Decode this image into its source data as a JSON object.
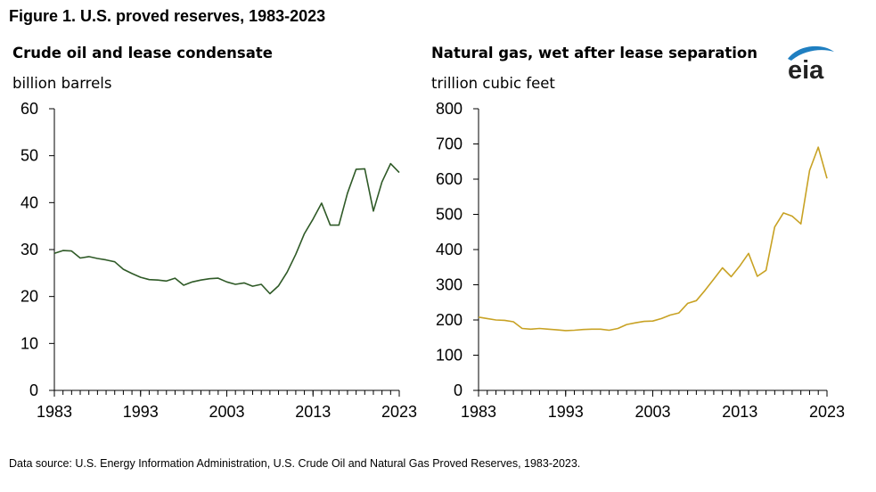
{
  "figure_title": "Figure 1. U.S. proved reserves, 1983-2023",
  "source": "Data source: U.S. Energy Information Administration, U.S. Crude Oil and Natural Gas Proved Reserves, 1983-2023.",
  "logo_text": "eia",
  "colors": {
    "oil": "#2f5a27",
    "gas": "#c8a224",
    "axis": "#000000",
    "logo_blue": "#1f7fc1"
  },
  "chart_data": [
    {
      "type": "line",
      "title": "Crude oil and lease condensate",
      "ylabel": "billion barrels",
      "xlabel": "",
      "ylim": [
        0,
        60
      ],
      "yticks": [
        0,
        10,
        20,
        30,
        40,
        50,
        60
      ],
      "xlim": [
        1983,
        2023
      ],
      "xticks": [
        1983,
        1993,
        2003,
        2013,
        2023
      ],
      "grid": false,
      "series": [
        {
          "name": "Crude oil and lease condensate",
          "x": [
            1983,
            1984,
            1985,
            1986,
            1987,
            1988,
            1989,
            1990,
            1991,
            1992,
            1993,
            1994,
            1995,
            1996,
            1997,
            1998,
            1999,
            2000,
            2001,
            2002,
            2003,
            2004,
            2005,
            2006,
            2007,
            2008,
            2009,
            2010,
            2011,
            2012,
            2013,
            2014,
            2015,
            2016,
            2017,
            2018,
            2019,
            2020,
            2021,
            2022,
            2023
          ],
          "values": [
            29.2,
            29.8,
            29.7,
            28.2,
            28.5,
            28.1,
            27.8,
            27.4,
            25.8,
            24.9,
            24.1,
            23.6,
            23.5,
            23.3,
            23.9,
            22.4,
            23.1,
            23.5,
            23.8,
            23.9,
            23.1,
            22.6,
            22.9,
            22.2,
            22.6,
            20.6,
            22.3,
            25.2,
            29.0,
            33.4,
            36.5,
            39.9,
            35.2,
            35.2,
            42.0,
            47.1,
            47.2,
            38.2,
            44.4,
            48.3,
            46.4
          ]
        }
      ]
    },
    {
      "type": "line",
      "title": "Natural gas, wet after lease separation",
      "ylabel": "trillion cubic feet",
      "xlabel": "",
      "ylim": [
        0,
        800
      ],
      "yticks": [
        0,
        100,
        200,
        300,
        400,
        500,
        600,
        700,
        800
      ],
      "xlim": [
        1983,
        2023
      ],
      "xticks": [
        1983,
        1993,
        2003,
        2013,
        2023
      ],
      "grid": false,
      "series": [
        {
          "name": "Natural gas, wet after lease separation",
          "x": [
            1983,
            1984,
            1985,
            1986,
            1987,
            1988,
            1989,
            1990,
            1991,
            1992,
            1993,
            1994,
            1995,
            1996,
            1997,
            1998,
            1999,
            2000,
            2001,
            2002,
            2003,
            2004,
            2005,
            2006,
            2007,
            2008,
            2009,
            2010,
            2011,
            2012,
            2013,
            2014,
            2015,
            2016,
            2017,
            2018,
            2019,
            2020,
            2021,
            2022,
            2023
          ],
          "values": [
            208,
            204,
            200,
            199,
            195,
            176,
            174,
            176,
            174,
            172,
            170,
            171,
            173,
            174,
            174,
            171,
            176,
            187,
            192,
            196,
            197,
            204,
            214,
            220,
            247,
            255,
            284,
            316,
            348,
            323,
            354,
            389,
            324,
            341,
            464,
            504,
            495,
            473,
            625,
            691,
            602
          ]
        }
      ]
    }
  ]
}
